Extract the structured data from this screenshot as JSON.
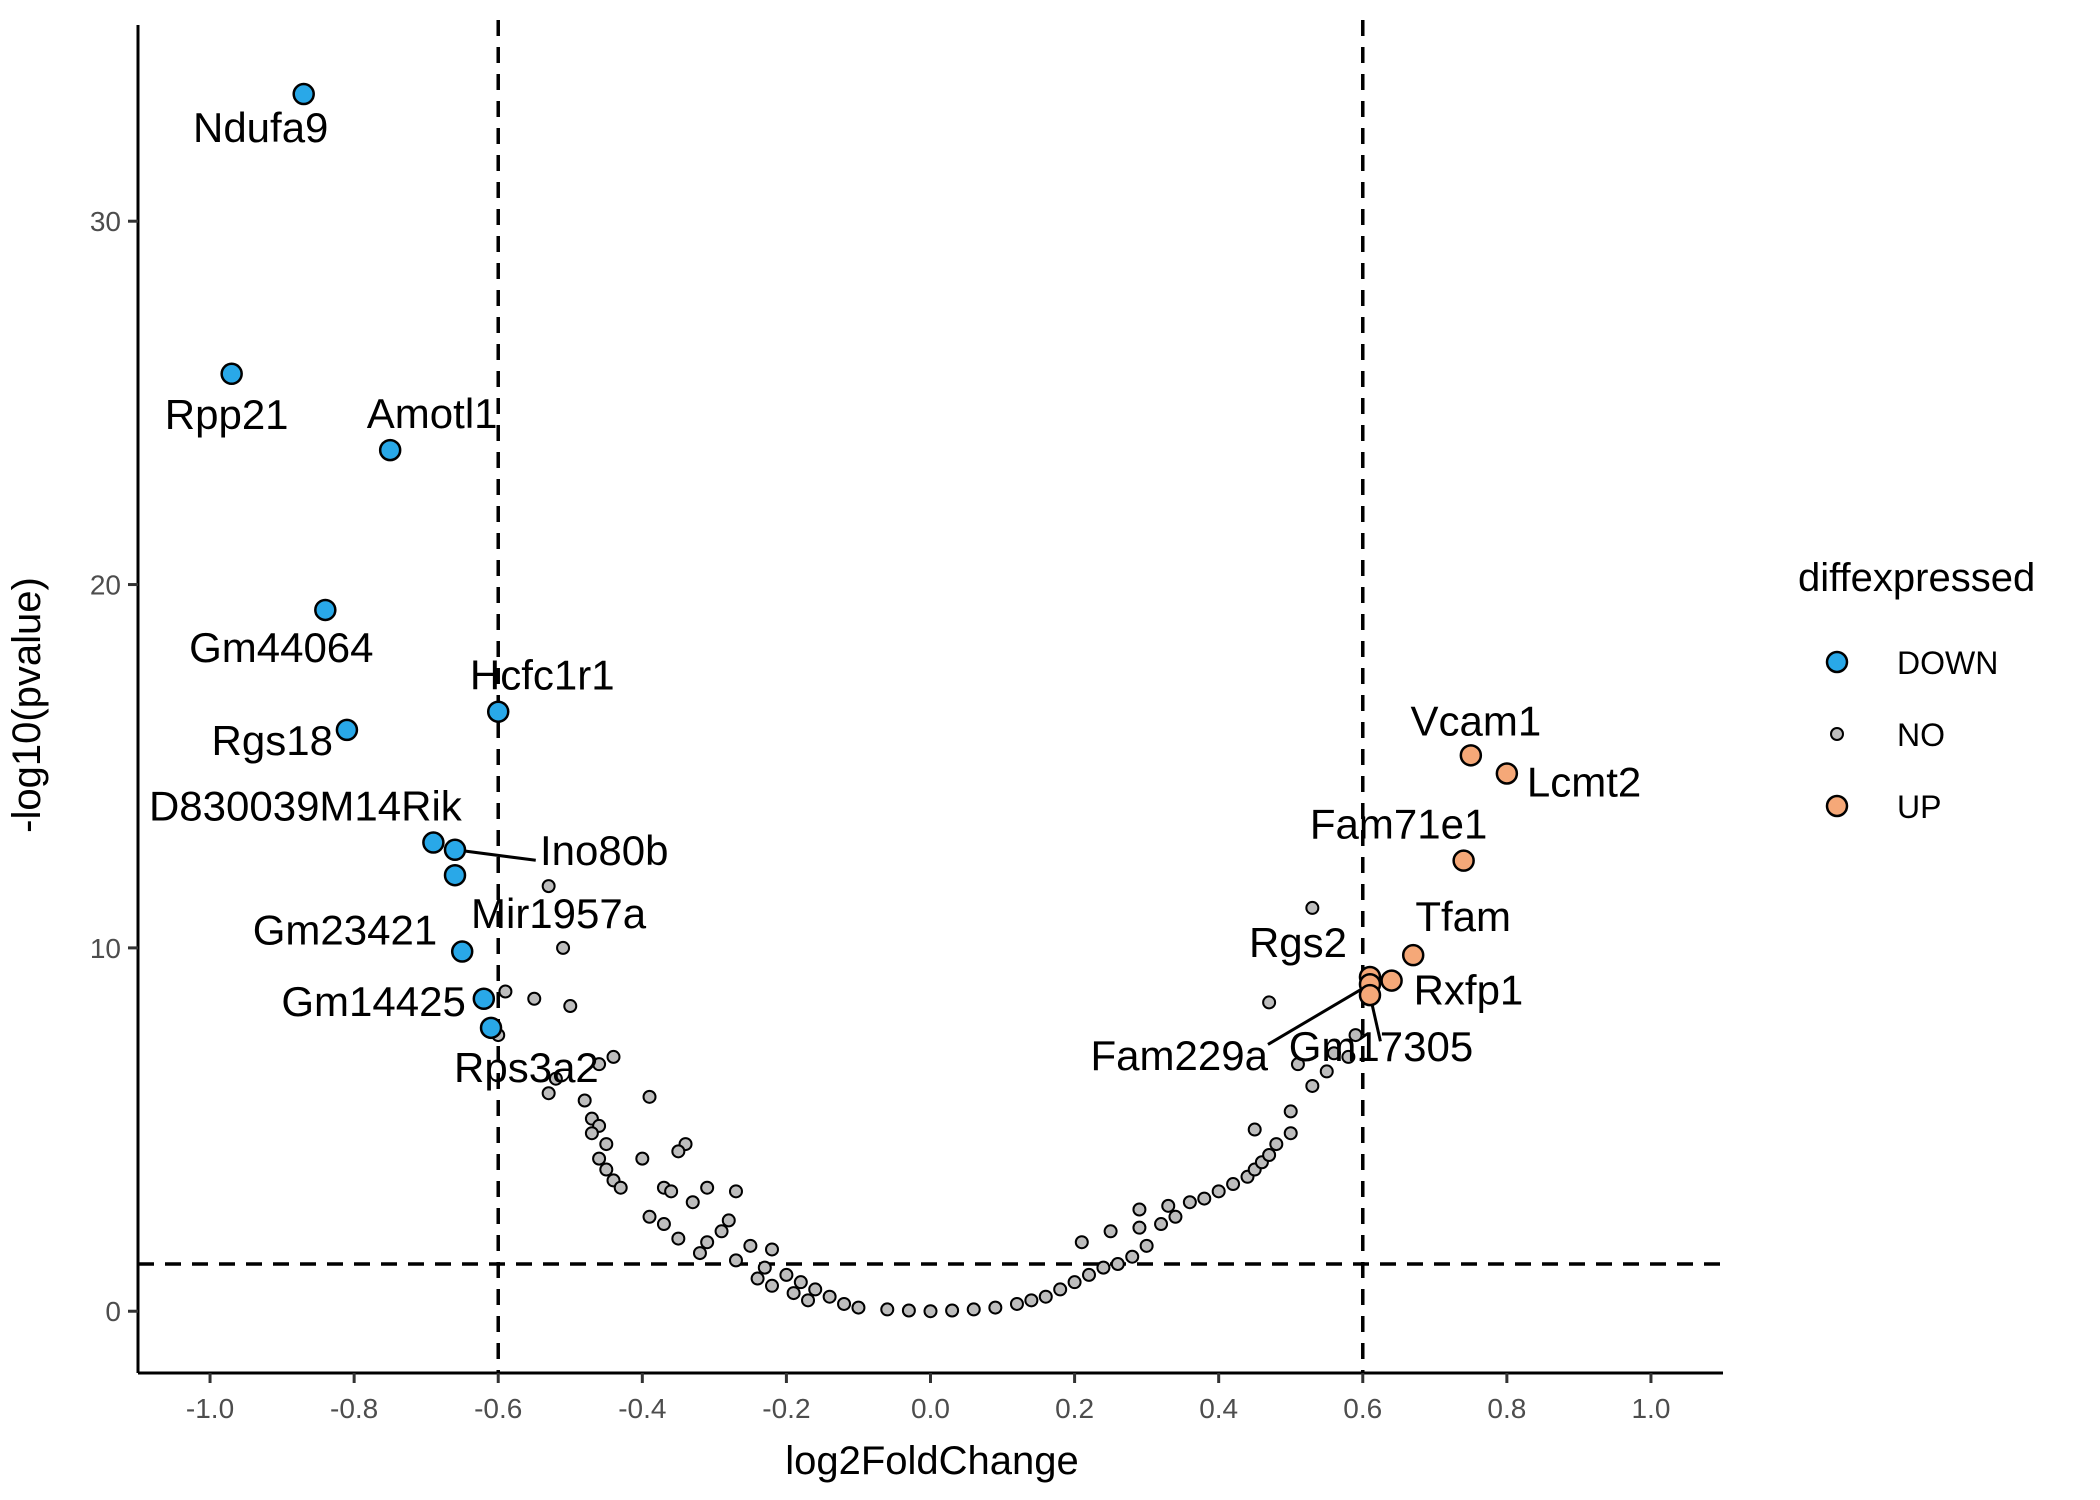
{
  "chart_data": {
    "type": "scatter",
    "title": "",
    "xlabel": "log2FoldChange",
    "ylabel": "-log10(pvalue)",
    "xlim": [
      -1.1,
      1.1
    ],
    "ylim": [
      -1.7,
      35.4
    ],
    "x_ticks": [
      -1.0,
      -0.8,
      -0.6,
      -0.4,
      -0.2,
      0.0,
      0.2,
      0.4,
      0.6,
      0.8,
      1.0
    ],
    "x_tick_labels": [
      "-1.0",
      "-0.8",
      "-0.6",
      "-0.4",
      "-0.2",
      "0.0",
      "0.2",
      "0.4",
      "0.6",
      "0.8",
      "1.0"
    ],
    "y_ticks": [
      0,
      10,
      20,
      30
    ],
    "y_tick_labels": [
      "0",
      "10",
      "20",
      "30"
    ],
    "grid": false,
    "threshold_lines": {
      "vertical": [
        -0.6,
        0.6
      ],
      "horizontal": [
        1.3
      ]
    },
    "legend": {
      "title": "diffexpressed",
      "placement": "right",
      "entries": [
        {
          "name": "DOWN",
          "color": "#29a8e8"
        },
        {
          "name": "NO",
          "color": "#bdbdbd"
        },
        {
          "name": "UP",
          "color": "#f5a878"
        }
      ]
    },
    "series": [
      {
        "name": "DOWN",
        "color": "#29a8e8",
        "points": [
          {
            "x": -0.87,
            "y": 33.5,
            "label": "Ndufa9"
          },
          {
            "x": -0.97,
            "y": 25.8,
            "label": "Rpp21"
          },
          {
            "x": -0.75,
            "y": 23.7,
            "label": "Amotl1"
          },
          {
            "x": -0.84,
            "y": 19.3,
            "label": "Gm44064"
          },
          {
            "x": -0.6,
            "y": 16.5,
            "label": "Hcfc1r1"
          },
          {
            "x": -0.81,
            "y": 16.0,
            "label": "Rgs18"
          },
          {
            "x": -0.69,
            "y": 12.9,
            "label": "D830039M14Rik"
          },
          {
            "x": -0.66,
            "y": 12.7,
            "label": "Ino80b"
          },
          {
            "x": -0.66,
            "y": 12.0,
            "label": "Mir1957a"
          },
          {
            "x": -0.65,
            "y": 9.9,
            "label": "Gm23421"
          },
          {
            "x": -0.62,
            "y": 8.6,
            "label": "Gm14425"
          },
          {
            "x": -0.61,
            "y": 7.8,
            "label": "Rps3a2"
          }
        ]
      },
      {
        "name": "NO",
        "color": "#bdbdbd",
        "points": [
          {
            "x": -0.53,
            "y": 11.7
          },
          {
            "x": -0.51,
            "y": 10.0
          },
          {
            "x": -0.5,
            "y": 8.4
          },
          {
            "x": -0.59,
            "y": 8.8
          },
          {
            "x": -0.55,
            "y": 8.6
          },
          {
            "x": -0.6,
            "y": 7.6
          },
          {
            "x": -0.44,
            "y": 7.0
          },
          {
            "x": -0.46,
            "y": 6.8
          },
          {
            "x": -0.52,
            "y": 6.4
          },
          {
            "x": -0.53,
            "y": 6.0
          },
          {
            "x": -0.48,
            "y": 5.8
          },
          {
            "x": -0.47,
            "y": 5.3
          },
          {
            "x": -0.46,
            "y": 5.1
          },
          {
            "x": -0.47,
            "y": 4.9
          },
          {
            "x": -0.45,
            "y": 4.6
          },
          {
            "x": -0.39,
            "y": 5.9
          },
          {
            "x": -0.34,
            "y": 4.6
          },
          {
            "x": -0.35,
            "y": 4.4
          },
          {
            "x": -0.46,
            "y": 4.2
          },
          {
            "x": -0.45,
            "y": 3.9
          },
          {
            "x": -0.44,
            "y": 3.6
          },
          {
            "x": -0.43,
            "y": 3.4
          },
          {
            "x": -0.4,
            "y": 4.2
          },
          {
            "x": -0.37,
            "y": 3.4
          },
          {
            "x": -0.36,
            "y": 3.3
          },
          {
            "x": -0.31,
            "y": 3.4
          },
          {
            "x": -0.27,
            "y": 3.3
          },
          {
            "x": -0.33,
            "y": 3.0
          },
          {
            "x": -0.39,
            "y": 2.6
          },
          {
            "x": -0.37,
            "y": 2.4
          },
          {
            "x": -0.28,
            "y": 2.5
          },
          {
            "x": -0.29,
            "y": 2.2
          },
          {
            "x": -0.35,
            "y": 2.0
          },
          {
            "x": -0.31,
            "y": 1.9
          },
          {
            "x": -0.25,
            "y": 1.8
          },
          {
            "x": -0.22,
            "y": 1.7
          },
          {
            "x": -0.32,
            "y": 1.6
          },
          {
            "x": -0.27,
            "y": 1.4
          },
          {
            "x": -0.23,
            "y": 1.2
          },
          {
            "x": -0.2,
            "y": 1.0
          },
          {
            "x": -0.24,
            "y": 0.9
          },
          {
            "x": -0.18,
            "y": 0.8
          },
          {
            "x": -0.22,
            "y": 0.7
          },
          {
            "x": -0.16,
            "y": 0.6
          },
          {
            "x": -0.19,
            "y": 0.5
          },
          {
            "x": -0.14,
            "y": 0.4
          },
          {
            "x": -0.17,
            "y": 0.3
          },
          {
            "x": -0.12,
            "y": 0.2
          },
          {
            "x": -0.1,
            "y": 0.1
          },
          {
            "x": -0.06,
            "y": 0.05
          },
          {
            "x": -0.03,
            "y": 0.02
          },
          {
            "x": 0.0,
            "y": 0.0
          },
          {
            "x": 0.03,
            "y": 0.02
          },
          {
            "x": 0.06,
            "y": 0.05
          },
          {
            "x": 0.09,
            "y": 0.1
          },
          {
            "x": 0.12,
            "y": 0.2
          },
          {
            "x": 0.14,
            "y": 0.3
          },
          {
            "x": 0.16,
            "y": 0.4
          },
          {
            "x": 0.18,
            "y": 0.6
          },
          {
            "x": 0.2,
            "y": 0.8
          },
          {
            "x": 0.22,
            "y": 1.0
          },
          {
            "x": 0.24,
            "y": 1.2
          },
          {
            "x": 0.26,
            "y": 1.3
          },
          {
            "x": 0.28,
            "y": 1.5
          },
          {
            "x": 0.3,
            "y": 1.8
          },
          {
            "x": 0.21,
            "y": 1.9
          },
          {
            "x": 0.25,
            "y": 2.2
          },
          {
            "x": 0.29,
            "y": 2.3
          },
          {
            "x": 0.32,
            "y": 2.4
          },
          {
            "x": 0.34,
            "y": 2.6
          },
          {
            "x": 0.29,
            "y": 2.8
          },
          {
            "x": 0.33,
            "y": 2.9
          },
          {
            "x": 0.36,
            "y": 3.0
          },
          {
            "x": 0.38,
            "y": 3.1
          },
          {
            "x": 0.4,
            "y": 3.3
          },
          {
            "x": 0.42,
            "y": 3.5
          },
          {
            "x": 0.44,
            "y": 3.7
          },
          {
            "x": 0.45,
            "y": 3.9
          },
          {
            "x": 0.46,
            "y": 4.1
          },
          {
            "x": 0.47,
            "y": 4.3
          },
          {
            "x": 0.48,
            "y": 4.6
          },
          {
            "x": 0.45,
            "y": 5.0
          },
          {
            "x": 0.5,
            "y": 5.5
          },
          {
            "x": 0.53,
            "y": 6.2
          },
          {
            "x": 0.55,
            "y": 6.6
          },
          {
            "x": 0.51,
            "y": 6.8
          },
          {
            "x": 0.56,
            "y": 7.1
          },
          {
            "x": 0.59,
            "y": 7.6
          },
          {
            "x": 0.47,
            "y": 8.5
          },
          {
            "x": 0.53,
            "y": 11.1
          },
          {
            "x": 0.58,
            "y": 7.0
          },
          {
            "x": 0.5,
            "y": 4.9
          }
        ]
      },
      {
        "name": "UP",
        "color": "#f5a878",
        "points": [
          {
            "x": 0.75,
            "y": 15.3,
            "label": "Vcam1"
          },
          {
            "x": 0.8,
            "y": 14.8,
            "label": "Lcmt2"
          },
          {
            "x": 0.74,
            "y": 12.4,
            "label": "Fam71e1"
          },
          {
            "x": 0.67,
            "y": 9.8,
            "label": "Tfam"
          },
          {
            "x": 0.61,
            "y": 9.2,
            "label": "Rgs2"
          },
          {
            "x": 0.64,
            "y": 9.1,
            "label": "Rxfp1"
          },
          {
            "x": 0.61,
            "y": 9.0,
            "label": "Fam229a"
          },
          {
            "x": 0.61,
            "y": 8.7,
            "label": "Gm17305"
          }
        ]
      }
    ]
  }
}
